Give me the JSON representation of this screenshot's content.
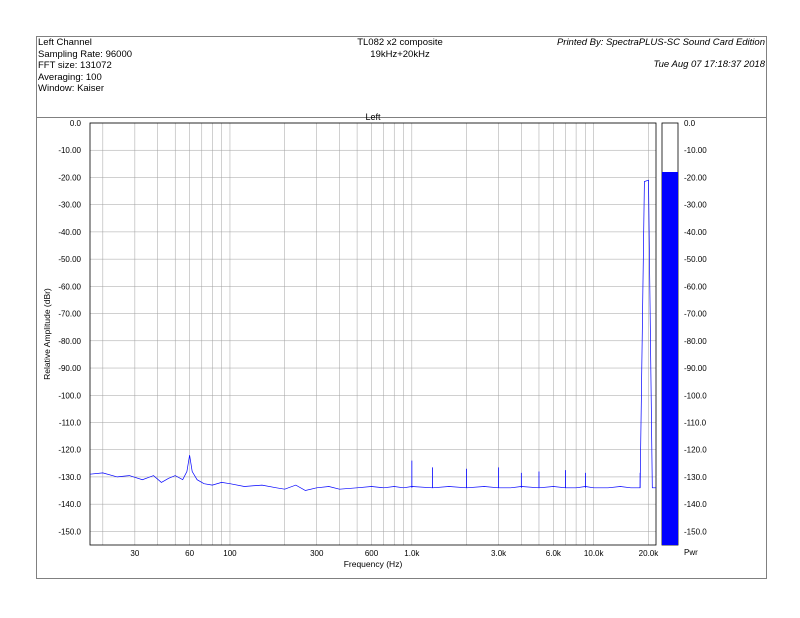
{
  "header": {
    "channel": "Left Channel",
    "sampling_rate": "Sampling Rate: 96000",
    "fft_size": "FFT size: 131072",
    "averaging": "Averaging: 100",
    "window": "Window: Kaiser",
    "title": "TL082 x2 composite",
    "subtitle": "19kHz+20kHz",
    "printed_by": "Printed By: SpectraPLUS-SC Sound Card Edition",
    "date": "Tue Aug 07 17:18:37 2018"
  },
  "chart_data": {
    "type": "line",
    "title": "Left",
    "xlabel": "Frequency (Hz)",
    "ylabel": "Relative Amplitude (dBr)",
    "xscale": "log",
    "xlim": [
      17,
      22000
    ],
    "ylim": [
      -155,
      0
    ],
    "grid": true,
    "line_color": "#0000ff",
    "y_ticks": [
      0,
      -10,
      -20,
      -30,
      -40,
      -50,
      -60,
      -70,
      -80,
      -90,
      -100,
      -110,
      -120,
      -130,
      -140,
      -150
    ],
    "y_tick_labels": [
      "0.0",
      "-10.00",
      "-20.00",
      "-30.00",
      "-40.00",
      "-50.00",
      "-60.00",
      "-70.00",
      "-80.00",
      "-90.00",
      "-100.0",
      "-110.0",
      "-120.0",
      "-130.0",
      "-140.0",
      "-150.0"
    ],
    "x_ticks": [
      30,
      60,
      100,
      300,
      600,
      1000,
      3000,
      6000,
      10000,
      20000
    ],
    "x_tick_labels": [
      "30",
      "60",
      "100",
      "300",
      "600",
      "1.0k",
      "3.0k",
      "6.0k",
      "10.0k",
      "20.0k"
    ],
    "x": [
      17,
      20,
      24,
      28,
      33,
      38,
      42,
      46,
      50,
      55,
      58,
      60,
      62,
      66,
      72,
      80,
      90,
      100,
      120,
      150,
      180,
      200,
      230,
      260,
      300,
      350,
      400,
      500,
      600,
      700,
      800,
      900,
      1000,
      1300,
      1600,
      2000,
      2500,
      3000,
      3500,
      4000,
      5000,
      6000,
      7000,
      8000,
      9000,
      10000,
      12000,
      14000,
      16000,
      17000,
      18000,
      19000,
      20000,
      21000,
      22000
    ],
    "y": [
      -129,
      -128.5,
      -130,
      -129.5,
      -131,
      -129.5,
      -132,
      -130.5,
      -129.5,
      -131,
      -128,
      -122,
      -128,
      -131,
      -132.5,
      -133,
      -132,
      -132.5,
      -133.5,
      -133,
      -134,
      -134.5,
      -133,
      -135,
      -134,
      -133.5,
      -134.5,
      -134,
      -133.5,
      -134,
      -133.5,
      -134,
      -133.5,
      -134,
      -133.5,
      -134,
      -133.5,
      -134,
      -134,
      -133.5,
      -134,
      -133.5,
      -134,
      -134,
      -133.5,
      -134,
      -134,
      -133.5,
      -134,
      -134,
      -134,
      -21.5,
      -21,
      -134,
      -134
    ],
    "spurs": [
      {
        "freq": 1000,
        "level": -124
      },
      {
        "freq": 1300,
        "level": -126.5
      },
      {
        "freq": 2000,
        "level": -127
      },
      {
        "freq": 3000,
        "level": -126.5
      },
      {
        "freq": 4000,
        "level": -128.5
      },
      {
        "freq": 5000,
        "level": -128
      },
      {
        "freq": 7000,
        "level": -127.5
      },
      {
        "freq": 9000,
        "level": -128.5
      },
      {
        "freq": 18000,
        "level": -128.5
      }
    ],
    "power_meter": {
      "label": "Pwr",
      "level": -18,
      "ticks": [
        0,
        -10,
        -20,
        -30,
        -40,
        -50,
        -60,
        -70,
        -80,
        -90,
        -100,
        -110,
        -120,
        -130,
        -140,
        -150
      ],
      "tick_labels": [
        "0.0",
        "-10.00",
        "-20.00",
        "-30.00",
        "-40.00",
        "-50.00",
        "-60.00",
        "-70.00",
        "-80.00",
        "-90.00",
        "-100.0",
        "-110.0",
        "-120.0",
        "-130.0",
        "-140.0",
        "-150.0"
      ],
      "fill_color": "#0000ff"
    }
  }
}
